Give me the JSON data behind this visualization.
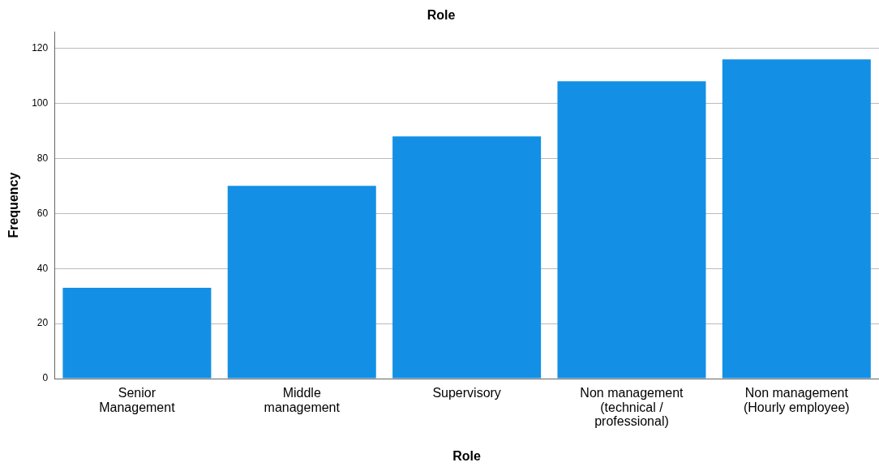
{
  "chart_data": {
    "type": "bar",
    "title": "Role",
    "xlabel": "Role",
    "ylabel": "Frequency",
    "categories": [
      "Senior\nManagement",
      "Middle\nmanagement",
      "Supervisory",
      "Non management\n(technical /\nprofessional)",
      "Non management\n(Hourly employee)"
    ],
    "values": [
      33,
      70,
      88,
      108,
      116
    ],
    "color": "#1390e5",
    "ylim": [
      0,
      126
    ],
    "yticks": [
      0,
      20,
      40,
      60,
      80,
      100,
      120
    ],
    "grid": "y"
  }
}
